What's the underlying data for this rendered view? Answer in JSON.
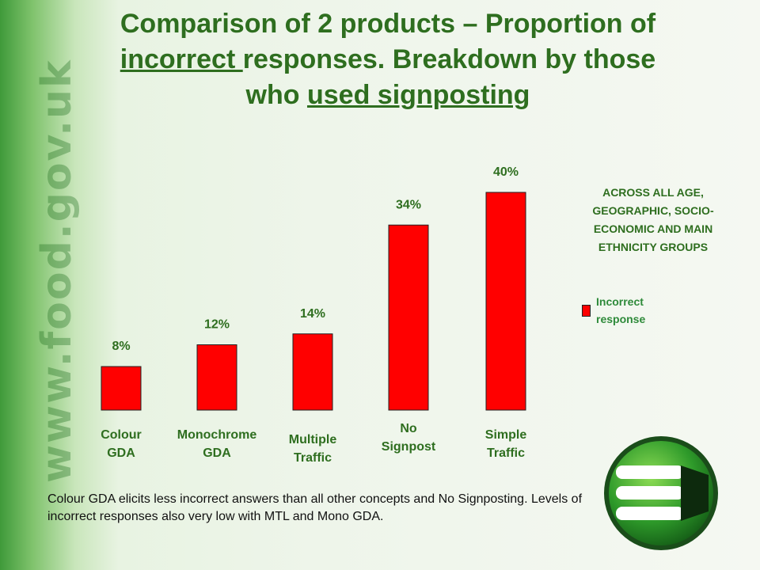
{
  "watermark": "www.food.gov.uk",
  "title": {
    "line1": "Comparison of 2 products – Proportion of",
    "line2_u": "incorrect ",
    "line2_rest": "responses.  Breakdown by those",
    "line3_pre": "who ",
    "line3_u": "used signposting"
  },
  "note": "ACROSS ALL AGE, GEOGRAPHIC, SOCIO-ECONOMIC AND MAIN ETHNICITY GROUPS",
  "legend": {
    "label": "Incorrect response",
    "color": "#ff0000"
  },
  "caption": "Colour GDA elicits less incorrect answers than all other concepts and No Signposting. Levels of incorrect responses also very low with MTL and Mono GDA.",
  "chart_data": {
    "type": "bar",
    "categories": [
      "Colour GDA",
      "Monochrome GDA",
      "Multiple Traffic",
      "No Signpost",
      "Simple Traffic"
    ],
    "series": [
      {
        "name": "Incorrect response",
        "values": [
          8,
          12,
          14,
          34,
          40
        ],
        "color": "#ff0000"
      }
    ],
    "value_labels": [
      "8%",
      "12%",
      "14%",
      "34%",
      "40%"
    ],
    "unit": "%",
    "ylim": [
      0,
      40
    ],
    "grid": false,
    "legend_position": "right"
  }
}
